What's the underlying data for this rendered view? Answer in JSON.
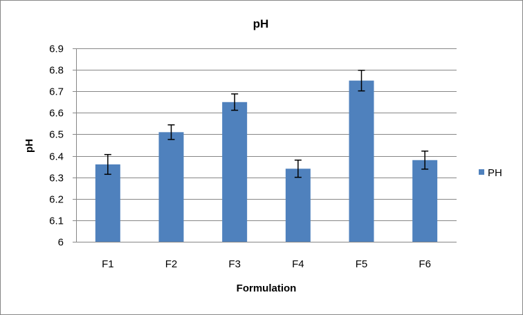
{
  "chart_data": {
    "type": "bar",
    "title": "pH",
    "xlabel": "Formulation",
    "ylabel": "pH",
    "categories": [
      "F1",
      "F2",
      "F3",
      "F4",
      "F5",
      "F6"
    ],
    "series": [
      {
        "name": "PH",
        "values": [
          6.36,
          6.51,
          6.65,
          6.34,
          6.75,
          6.38
        ],
        "errors": [
          0.046,
          0.034,
          0.038,
          0.04,
          0.048,
          0.042
        ]
      }
    ],
    "ylim": [
      6,
      6.9
    ],
    "yticks": [
      "6",
      "6.1",
      "6.2",
      "6.3",
      "6.4",
      "6.5",
      "6.6",
      "6.7",
      "6.8",
      "6.9"
    ],
    "grid": true,
    "legend_position": "right",
    "colors": {
      "bar": "#4F81BD",
      "grid": "#868686",
      "axis": "#868686",
      "error_bar": "#000000"
    }
  }
}
